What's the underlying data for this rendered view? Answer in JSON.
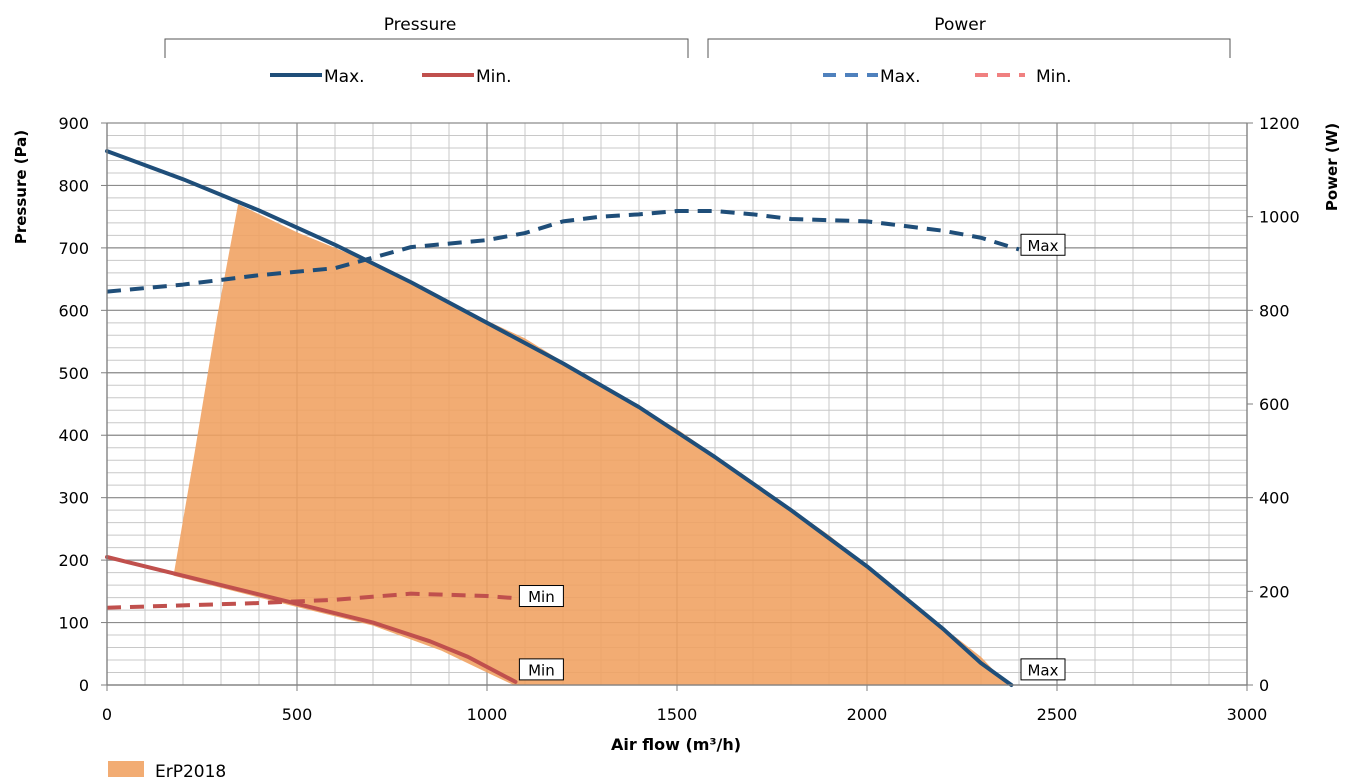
{
  "chart_data": {
    "type": "line",
    "xlabel": "Air flow (m³/h)",
    "ylabel_left": "Pressure (Pa)",
    "ylabel_right": "Power (W)",
    "xlim": [
      0,
      3000
    ],
    "ylim_left": [
      0,
      900
    ],
    "ylim_right": [
      0,
      1200
    ],
    "x_ticks": [
      0,
      500,
      1000,
      1500,
      2000,
      2500,
      3000
    ],
    "y_ticks_left": [
      0,
      100,
      200,
      300,
      400,
      500,
      600,
      700,
      800,
      900
    ],
    "y_ticks_right": [
      0,
      200,
      400,
      600,
      800,
      1000,
      1200
    ],
    "grid": true,
    "legend_groups": [
      {
        "title": "Pressure",
        "items": [
          {
            "label": "Max.",
            "color": "#1f4e79",
            "style": "solid"
          },
          {
            "label": "Min.",
            "color": "#c0504d",
            "style": "solid"
          }
        ]
      },
      {
        "title": "Power",
        "items": [
          {
            "label": "Max.",
            "color": "#4f81bd",
            "style": "dashed"
          },
          {
            "label": "Min.",
            "color": "#f08080",
            "style": "dashed"
          }
        ]
      }
    ],
    "area": {
      "label": "ErP2018",
      "color": "#f0a060",
      "polygon": [
        [
          175,
          175
        ],
        [
          230,
          370
        ],
        [
          290,
          590
        ],
        [
          345,
          770
        ],
        [
          500,
          725
        ],
        [
          700,
          675
        ],
        [
          900,
          612
        ],
        [
          1100,
          555
        ],
        [
          1300,
          480
        ],
        [
          1500,
          410
        ],
        [
          1700,
          325
        ],
        [
          1900,
          240
        ],
        [
          2100,
          140
        ],
        [
          2300,
          45
        ],
        [
          2370,
          0
        ],
        [
          1070,
          0
        ],
        [
          1000,
          20
        ],
        [
          880,
          55
        ],
        [
          700,
          95
        ],
        [
          500,
          125
        ],
        [
          400,
          140
        ],
        [
          175,
          175
        ]
      ]
    },
    "series": [
      {
        "name": "Max.",
        "group": "Pressure",
        "axis": "left",
        "color": "#1f4e79",
        "style": "solid",
        "x": [
          0,
          200,
          400,
          600,
          800,
          1000,
          1200,
          1400,
          1600,
          1800,
          2000,
          2200,
          2300,
          2380
        ],
        "y": [
          855,
          810,
          760,
          705,
          645,
          580,
          515,
          445,
          365,
          280,
          190,
          90,
          35,
          0
        ]
      },
      {
        "name": "Min.",
        "group": "Pressure",
        "axis": "left",
        "color": "#c0504d",
        "style": "solid",
        "x": [
          0,
          200,
          400,
          600,
          700,
          850,
          950,
          1075
        ],
        "y": [
          205,
          175,
          145,
          115,
          100,
          70,
          45,
          5
        ]
      },
      {
        "name": "Max.",
        "group": "Power",
        "axis": "right",
        "color": "#1f4e79",
        "style": "dashed",
        "x": [
          0,
          200,
          400,
          600,
          800,
          1000,
          1100,
          1200,
          1300,
          1400,
          1500,
          1600,
          1700,
          1800,
          2000,
          2200,
          2300,
          2400
        ],
        "y": [
          840,
          855,
          875,
          890,
          935,
          950,
          965,
          990,
          1000,
          1005,
          1012,
          1012,
          1005,
          995,
          990,
          970,
          955,
          930
        ]
      },
      {
        "name": "Min.",
        "group": "Power",
        "axis": "right",
        "color": "#c0504d",
        "style": "dashed",
        "x": [
          0,
          200,
          400,
          600,
          800,
          1000,
          1080
        ],
        "y": [
          165,
          170,
          175,
          182,
          195,
          190,
          185
        ]
      }
    ],
    "annotations": [
      {
        "text": "Max",
        "x": 2400,
        "y_axis": "right",
        "y": 940
      },
      {
        "text": "Min",
        "x": 1080,
        "y_axis": "right",
        "y": 190
      },
      {
        "text": "Min",
        "x": 1080,
        "y_axis": "left",
        "y": 25
      },
      {
        "text": "Max",
        "x": 2400,
        "y_axis": "left",
        "y": 25
      }
    ]
  }
}
